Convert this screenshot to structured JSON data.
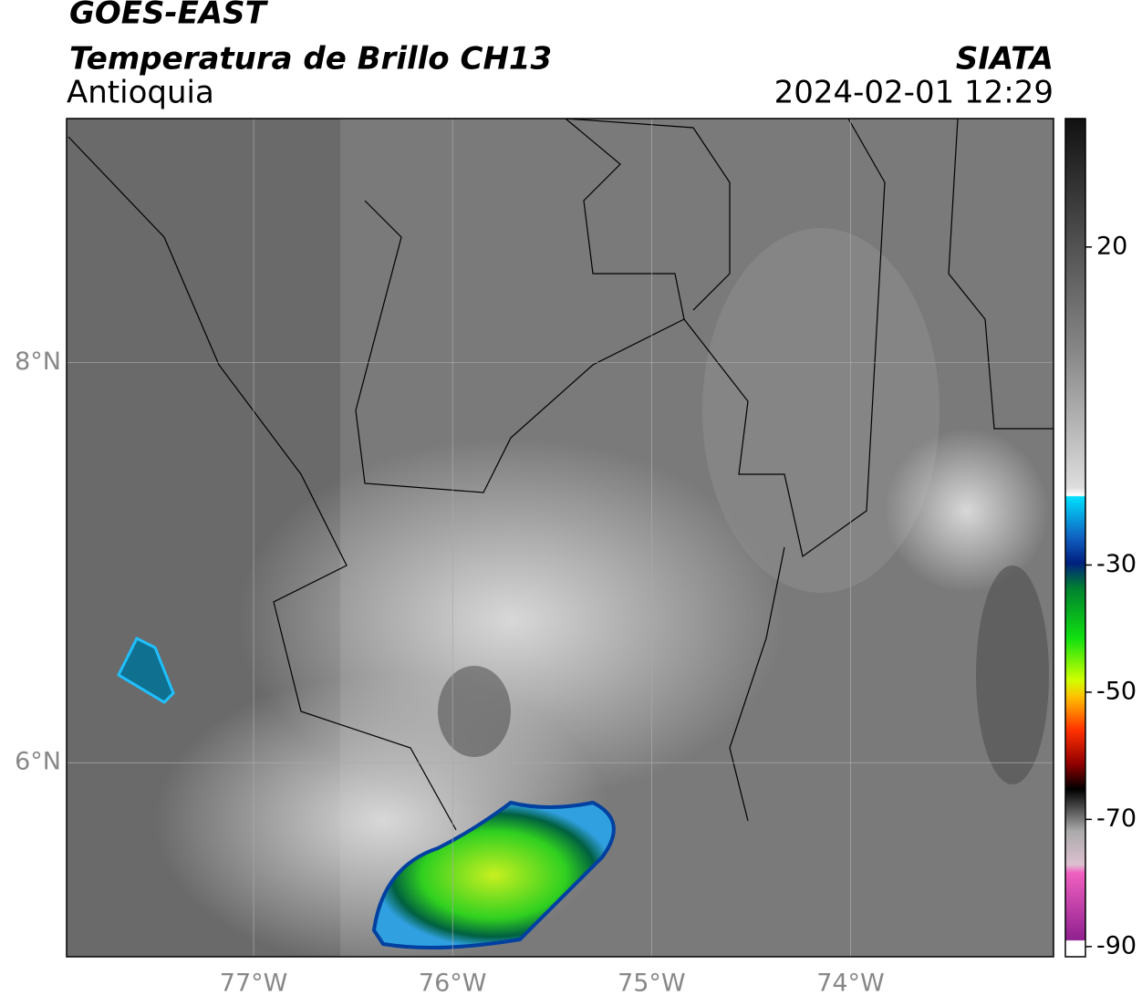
{
  "header": {
    "title": "GOES-EAST",
    "subtitle": "Temperatura de Brillo CH13",
    "region": "Antioquia",
    "source": "SIATA",
    "datetime": "2024-02-01 12:29"
  },
  "map": {
    "xlim": [
      -77.94,
      -72.98
    ],
    "ylim": [
      5.03,
      9.22
    ],
    "xticks": [
      {
        "value": -77,
        "label": "77°W"
      },
      {
        "value": -76,
        "label": "76°W"
      },
      {
        "value": -75,
        "label": "75°W"
      },
      {
        "value": -74,
        "label": "74°W"
      }
    ],
    "yticks": [
      {
        "value": 8,
        "label": "8°N"
      },
      {
        "value": 6,
        "label": "6°N"
      }
    ],
    "grid": true
  },
  "colorbar": {
    "lim": [
      -91.6,
      40.2
    ],
    "ticks": [
      20,
      -30,
      -50,
      -70,
      -90
    ]
  }
}
